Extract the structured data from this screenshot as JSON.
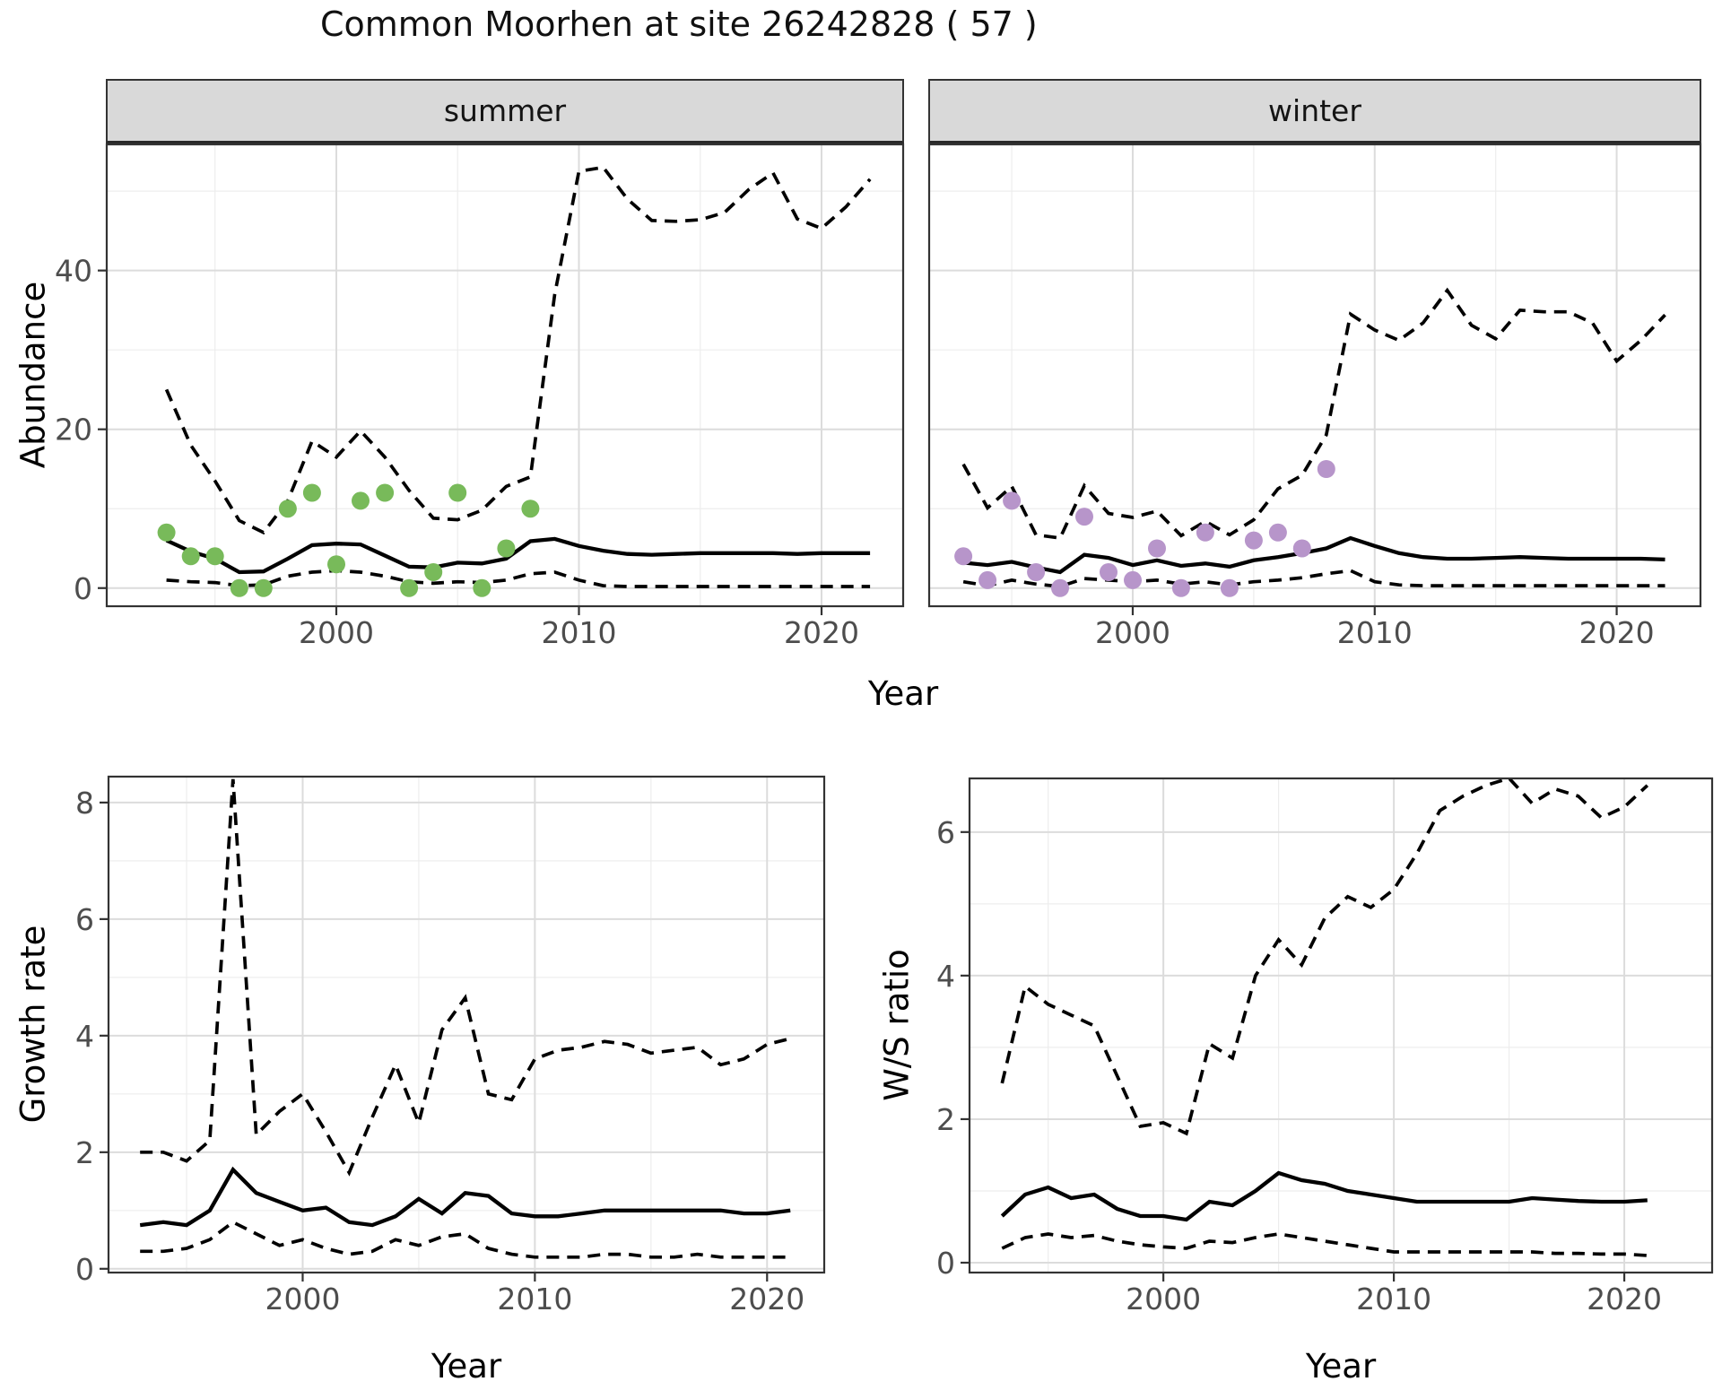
{
  "title": "Common Moorhen at site 26242828 ( 57 )",
  "facets": {
    "summer": "summer",
    "winter": "winter"
  },
  "axis_labels": {
    "year": "Year",
    "abundance": "Abundance",
    "growth_rate": "Growth rate",
    "ws_ratio": "W/S ratio"
  },
  "colors": {
    "summer_points": "#78BA5A",
    "winter_points": "#B795CA",
    "line": "#000000",
    "strip_background": "#D9D9D9",
    "panel_border": "#333333",
    "grid_major": "#DCDCDC",
    "grid_minor": "#EDEDED",
    "tick_text": "#4D4D4D"
  },
  "chart_data": [
    {
      "id": "abundance-summer",
      "type": "line",
      "facet_label": "summer",
      "xlabel": "Year",
      "ylabel": "Abundance",
      "xlim": [
        1990.5,
        2023.4
      ],
      "ylim": [
        -2.4,
        56.0
      ],
      "xticks": [
        2000,
        2010,
        2020
      ],
      "xticks_minor": [
        1995,
        2005,
        2015
      ],
      "yticks": [
        0,
        20,
        40
      ],
      "yticks_minor": [
        10,
        30,
        50
      ],
      "years": [
        1993,
        1994,
        1995,
        1996,
        1997,
        1998,
        1999,
        2000,
        2001,
        2002,
        2003,
        2004,
        2005,
        2006,
        2007,
        2008,
        2009,
        2010,
        2011,
        2012,
        2013,
        2014,
        2015,
        2016,
        2017,
        2018,
        2019,
        2020,
        2021,
        2022
      ],
      "series": [
        {
          "name": "upper-ci",
          "style": "dashed",
          "values": [
            25,
            18,
            13.5,
            8.5,
            7,
            11,
            18.5,
            16.5,
            19.8,
            16.5,
            12.3,
            8.8,
            8.6,
            9.8,
            12.8,
            14,
            37,
            52.5,
            53,
            49,
            46.3,
            46.2,
            46.4,
            47.3,
            50.2,
            52.3,
            46.5,
            45.3,
            48,
            51.5
          ]
        },
        {
          "name": "estimate",
          "style": "solid",
          "values": [
            6,
            4.6,
            3.7,
            2,
            2.1,
            3.7,
            5.4,
            5.6,
            5.5,
            4.1,
            2.7,
            2.6,
            3.2,
            3.1,
            3.7,
            5.9,
            6.2,
            5.3,
            4.7,
            4.3,
            4.2,
            4.3,
            4.4,
            4.4,
            4.4,
            4.4,
            4.3,
            4.4,
            4.4,
            4.4
          ]
        },
        {
          "name": "lower-ci",
          "style": "dashed",
          "values": [
            1,
            0.8,
            0.7,
            0.3,
            0.4,
            1.5,
            2,
            2.2,
            2,
            1.5,
            0.8,
            0.6,
            0.8,
            0.7,
            1,
            1.8,
            2,
            1,
            0.3,
            0.2,
            0.2,
            0.2,
            0.2,
            0.2,
            0.2,
            0.2,
            0.2,
            0.2,
            0.2,
            0.2
          ]
        }
      ],
      "points": {
        "name": "observed-count",
        "color": "#78BA5A",
        "years": [
          1993,
          1994,
          1995,
          1996,
          1997,
          1998,
          1999,
          2000,
          2001,
          2002,
          2003,
          2004,
          2005,
          2006,
          2007,
          2008
        ],
        "values": [
          7,
          4,
          4,
          0,
          0,
          10,
          12,
          3,
          11,
          12,
          0,
          2,
          12,
          0,
          5,
          10
        ]
      }
    },
    {
      "id": "abundance-winter",
      "type": "line",
      "facet_label": "winter",
      "xlabel": "Year",
      "ylabel": "Abundance",
      "xlim": [
        1991.55,
        2023.5
      ],
      "ylim": [
        -2.4,
        56.0
      ],
      "xticks": [
        2000,
        2010,
        2020
      ],
      "xticks_minor": [
        1995,
        2005,
        2015
      ],
      "yticks": [
        0,
        20,
        40
      ],
      "yticks_minor": [
        10,
        30,
        50
      ],
      "years": [
        1993,
        1994,
        1995,
        1996,
        1997,
        1998,
        1999,
        2000,
        2001,
        2002,
        2003,
        2004,
        2005,
        2006,
        2007,
        2008,
        2009,
        2010,
        2011,
        2012,
        2013,
        2014,
        2015,
        2016,
        2017,
        2018,
        2019,
        2020,
        2021,
        2022
      ],
      "series": [
        {
          "name": "upper-ci",
          "style": "dashed",
          "values": [
            15.6,
            10.1,
            12.8,
            6.7,
            6.3,
            12.9,
            9.4,
            8.9,
            9.7,
            6.6,
            8.4,
            6.7,
            8.6,
            12.5,
            14.2,
            19.3,
            34.5,
            32.5,
            31.2,
            33.4,
            37.5,
            33.1,
            31.4,
            35,
            34.8,
            34.8,
            33.4,
            28.6,
            31.2,
            34.4
          ]
        },
        {
          "name": "estimate",
          "style": "solid",
          "values": [
            3.2,
            2.9,
            3.3,
            2.6,
            2,
            4.2,
            3.8,
            2.9,
            3.5,
            2.8,
            3.1,
            2.7,
            3.5,
            3.9,
            4.4,
            5,
            6.3,
            5.3,
            4.4,
            3.9,
            3.7,
            3.7,
            3.8,
            3.9,
            3.8,
            3.7,
            3.7,
            3.7,
            3.7,
            3.6
          ]
        },
        {
          "name": "lower-ci",
          "style": "dashed",
          "values": [
            0.8,
            0.3,
            1,
            0.5,
            0.2,
            1.2,
            1,
            0.8,
            1,
            0.5,
            0.8,
            0.4,
            0.8,
            1,
            1.3,
            1.8,
            2.2,
            0.8,
            0.4,
            0.3,
            0.3,
            0.3,
            0.3,
            0.3,
            0.3,
            0.3,
            0.3,
            0.3,
            0.3,
            0.3
          ]
        }
      ],
      "points": {
        "name": "observed-count",
        "color": "#B795CA",
        "years": [
          1993,
          1994,
          1995,
          1996,
          1997,
          1998,
          1999,
          2000,
          2001,
          2002,
          2003,
          2004,
          2005,
          2006,
          2007,
          2008
        ],
        "values": [
          4,
          1,
          11,
          2,
          0,
          9,
          2,
          1,
          5,
          0,
          7,
          0,
          6,
          7,
          5,
          15
        ]
      }
    },
    {
      "id": "growth-rate",
      "type": "line",
      "facet_label": null,
      "xlabel": "Year",
      "ylabel": "Growth rate",
      "xlim": [
        1991.6,
        2022.5
      ],
      "ylim": [
        -0.08,
        8.46
      ],
      "xticks": [
        2000,
        2010,
        2020
      ],
      "xticks_minor": [
        1995,
        2005,
        2015
      ],
      "yticks": [
        0,
        2,
        4,
        6,
        8
      ],
      "yticks_minor": [
        1,
        3,
        5,
        7
      ],
      "years": [
        1993,
        1994,
        1995,
        1996,
        1997,
        1998,
        1999,
        2000,
        2001,
        2002,
        2003,
        2004,
        2005,
        2006,
        2007,
        2008,
        2009,
        2010,
        2011,
        2012,
        2013,
        2014,
        2015,
        2016,
        2017,
        2018,
        2019,
        2020,
        2021
      ],
      "series": [
        {
          "name": "upper-ci",
          "style": "dashed",
          "values": [
            2,
            2,
            1.85,
            2.2,
            8.4,
            2.3,
            2.7,
            3,
            2.35,
            1.65,
            2.6,
            3.5,
            2.5,
            4.1,
            4.65,
            3,
            2.9,
            3.6,
            3.75,
            3.8,
            3.9,
            3.85,
            3.7,
            3.75,
            3.8,
            3.5,
            3.6,
            3.85,
            3.95
          ]
        },
        {
          "name": "estimate",
          "style": "solid",
          "values": [
            0.75,
            0.8,
            0.75,
            1,
            1.7,
            1.3,
            1.15,
            1,
            1.05,
            0.8,
            0.75,
            0.9,
            1.2,
            0.95,
            1.3,
            1.25,
            0.95,
            0.9,
            0.9,
            0.95,
            1,
            1,
            1,
            1,
            1,
            1,
            0.95,
            0.95,
            1
          ]
        },
        {
          "name": "lower-ci",
          "style": "dashed",
          "values": [
            0.3,
            0.3,
            0.35,
            0.5,
            0.8,
            0.6,
            0.4,
            0.5,
            0.35,
            0.25,
            0.3,
            0.5,
            0.4,
            0.55,
            0.6,
            0.35,
            0.25,
            0.2,
            0.2,
            0.2,
            0.25,
            0.25,
            0.2,
            0.2,
            0.25,
            0.2,
            0.2,
            0.2,
            0.2
          ]
        }
      ],
      "points": null
    },
    {
      "id": "ws-ratio",
      "type": "line",
      "facet_label": null,
      "xlabel": "Year",
      "ylabel": "W/S ratio",
      "xlim": [
        1991.55,
        2023.85
      ],
      "ylim": [
        -0.15,
        6.76
      ],
      "xticks": [
        2000,
        2010,
        2020
      ],
      "xticks_minor": [
        1995,
        2005,
        2015
      ],
      "yticks": [
        0,
        2,
        4,
        6
      ],
      "yticks_minor": [
        1,
        3,
        5
      ],
      "years": [
        1993,
        1994,
        1995,
        1996,
        1997,
        1998,
        1999,
        2000,
        2001,
        2002,
        2003,
        2004,
        2005,
        2006,
        2007,
        2008,
        2009,
        2010,
        2011,
        2012,
        2013,
        2014,
        2015,
        2016,
        2017,
        2018,
        2019,
        2020,
        2021
      ],
      "series": [
        {
          "name": "upper-ci",
          "style": "dashed",
          "values": [
            2.5,
            3.85,
            3.6,
            3.45,
            3.3,
            2.6,
            1.9,
            1.95,
            1.8,
            3.05,
            2.85,
            4,
            4.5,
            4.15,
            4.8,
            5.1,
            4.95,
            5.2,
            5.7,
            6.3,
            6.5,
            6.65,
            6.75,
            6.4,
            6.6,
            6.5,
            6.2,
            6.35,
            6.65
          ]
        },
        {
          "name": "estimate",
          "style": "solid",
          "values": [
            0.65,
            0.95,
            1.05,
            0.9,
            0.95,
            0.75,
            0.65,
            0.65,
            0.6,
            0.85,
            0.8,
            1,
            1.25,
            1.15,
            1.1,
            1,
            0.95,
            0.9,
            0.85,
            0.85,
            0.85,
            0.85,
            0.85,
            0.9,
            0.88,
            0.86,
            0.85,
            0.85,
            0.87
          ]
        },
        {
          "name": "lower-ci",
          "style": "dashed",
          "values": [
            0.2,
            0.35,
            0.4,
            0.35,
            0.38,
            0.3,
            0.25,
            0.22,
            0.2,
            0.3,
            0.28,
            0.35,
            0.4,
            0.35,
            0.3,
            0.25,
            0.2,
            0.15,
            0.15,
            0.15,
            0.15,
            0.15,
            0.15,
            0.15,
            0.13,
            0.13,
            0.12,
            0.12,
            0.1
          ]
        }
      ],
      "points": null
    }
  ]
}
